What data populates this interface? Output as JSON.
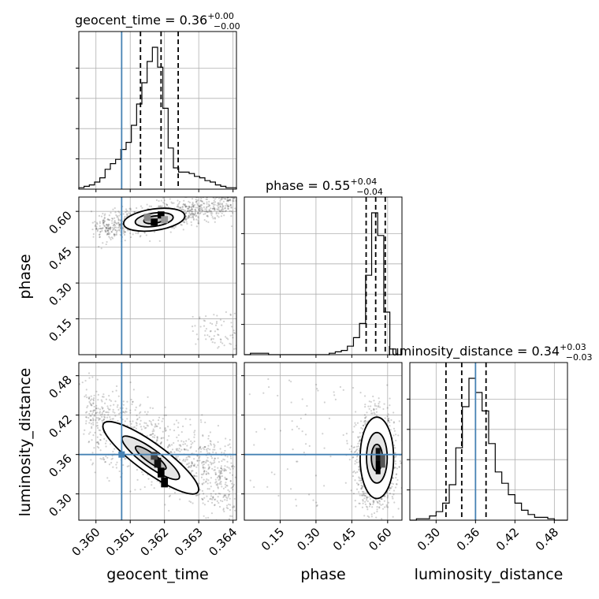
{
  "chart_data": {
    "type": "corner",
    "parameters": [
      "geocent_time",
      "phase",
      "luminosity_distance"
    ],
    "titles": {
      "geocent_time": {
        "main": "geocent_time = 0.36",
        "plus": "+0.00",
        "minus": "−0.00"
      },
      "phase": {
        "main": "phase = 0.55",
        "plus": "+0.04",
        "minus": "−0.04"
      },
      "luminosity_distance": {
        "main": "luminosity_distance = 0.34",
        "plus": "+0.03",
        "minus": "−0.03"
      }
    },
    "axis_labels": {
      "geocent_time": "geocent_time",
      "phase": "phase",
      "luminosity_distance": "luminosity_distance"
    },
    "ranges": {
      "geocent_time": [
        0.3595,
        0.3641
      ],
      "phase": [
        0.0,
        0.66
      ],
      "luminosity_distance": [
        0.26,
        0.5
      ]
    },
    "ticks": {
      "geocent_time": [
        0.36,
        0.361,
        0.362,
        0.363,
        0.364
      ],
      "phase": [
        0.15,
        0.3,
        0.45,
        0.6
      ],
      "luminosity_distance": [
        0.3,
        0.36,
        0.42,
        0.48
      ]
    },
    "tick_labels": {
      "geocent_time": [
        "0.360",
        "0.361",
        "0.362",
        "0.363",
        "0.364"
      ],
      "phase": [
        "0.15",
        "0.30",
        "0.45",
        "0.60"
      ],
      "luminosity_distance": [
        "0.30",
        "0.36",
        "0.42",
        "0.48"
      ]
    },
    "truths": {
      "geocent_time": 0.36075,
      "phase": null,
      "luminosity_distance": 0.36
    },
    "quantiles": {
      "geocent_time": [
        0.3613,
        0.3619,
        0.3624
      ],
      "phase": [
        0.51,
        0.55,
        0.59
      ],
      "luminosity_distance": [
        0.315,
        0.339,
        0.376
      ]
    },
    "histograms": {
      "geocent_time": [
        0.01,
        0.02,
        0.03,
        0.05,
        0.08,
        0.14,
        0.18,
        0.21,
        0.28,
        0.33,
        0.45,
        0.6,
        0.75,
        0.9,
        1.0,
        0.86,
        0.57,
        0.29,
        0.15,
        0.12,
        0.12,
        0.11,
        0.09,
        0.08,
        0.06,
        0.05,
        0.03,
        0.02,
        0.01,
        0.01
      ],
      "phase": [
        0.0,
        0.01,
        0.01,
        0.01,
        0.0,
        0.0,
        0.0,
        0.0,
        0.0,
        0.0,
        0.0,
        0.0,
        0.0,
        0.0,
        0.01,
        0.02,
        0.03,
        0.06,
        0.12,
        0.22,
        0.56,
        1.0,
        0.84,
        0.3,
        0.04,
        0.0
      ],
      "luminosity_distance": [
        0.0,
        0.01,
        0.01,
        0.03,
        0.06,
        0.12,
        0.25,
        0.51,
        0.8,
        1.0,
        0.9,
        0.77,
        0.54,
        0.34,
        0.26,
        0.18,
        0.12,
        0.07,
        0.04,
        0.02,
        0.02,
        0.01,
        0.0,
        0.0
      ]
    },
    "colors": {
      "truth": "#4682b4",
      "lines": "#000000",
      "grid": "#b0b0b0",
      "scatter": "#000000"
    },
    "grid": true
  }
}
